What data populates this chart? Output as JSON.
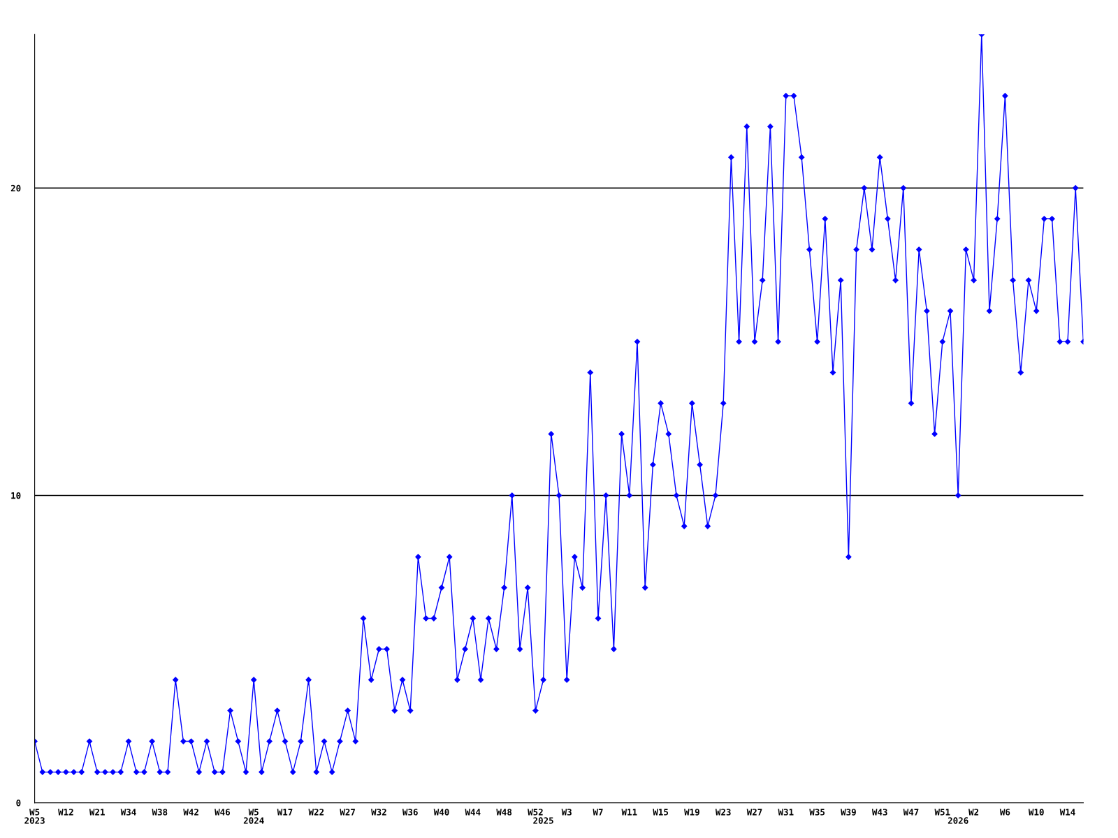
{
  "chart_data": {
    "type": "line",
    "categories": [
      "W5\n2023",
      null,
      null,
      null,
      "W12",
      null,
      null,
      null,
      "W21",
      null,
      null,
      null,
      "W34",
      null,
      null,
      null,
      "W38",
      null,
      null,
      null,
      "W42",
      null,
      null,
      null,
      "W46",
      null,
      null,
      null,
      "W5\n2024",
      null,
      null,
      null,
      "W17",
      null,
      null,
      null,
      "W22",
      null,
      null,
      null,
      "W27",
      null,
      null,
      null,
      "W32",
      null,
      null,
      null,
      "W36",
      null,
      null,
      null,
      "W40",
      null,
      null,
      null,
      "W44",
      null,
      null,
      null,
      "W48",
      null,
      null,
      null,
      "W52",
      "\n2025",
      null,
      null,
      "W3",
      null,
      null,
      null,
      "W7",
      null,
      null,
      null,
      "W11",
      null,
      null,
      null,
      "W15",
      null,
      null,
      null,
      "W19",
      null,
      null,
      null,
      "W23",
      null,
      null,
      null,
      "W27",
      null,
      null,
      null,
      "W31",
      null,
      null,
      null,
      "W35",
      null,
      null,
      null,
      "W39",
      null,
      null,
      null,
      "W43",
      null,
      null,
      null,
      "W47",
      null,
      null,
      null,
      "W51",
      null,
      "\n2026",
      null,
      "W2",
      null,
      null,
      null,
      "W6",
      null,
      null,
      null,
      "W10",
      null,
      null,
      null,
      "W14",
      null,
      null
    ],
    "series": [
      {
        "color": "#0000ff",
        "values": [
          2,
          1,
          1,
          1,
          1,
          1,
          1,
          2,
          1,
          1,
          1,
          1,
          2,
          1,
          1,
          2,
          1,
          1,
          4,
          2,
          2,
          1,
          2,
          1,
          1,
          3,
          2,
          1,
          4,
          1,
          2,
          3,
          2,
          1,
          2,
          4,
          1,
          2,
          1,
          2,
          3,
          2,
          6,
          4,
          5,
          5,
          3,
          4,
          3,
          8,
          6,
          6,
          7,
          8,
          4,
          5,
          6,
          4,
          6,
          5,
          7,
          10,
          5,
          7,
          3,
          4,
          12,
          10,
          4,
          8,
          7,
          14,
          6,
          10,
          5,
          12,
          10,
          15,
          7,
          11,
          13,
          12,
          10,
          9,
          13,
          11,
          9,
          10,
          13,
          21,
          15,
          22,
          15,
          17,
          22,
          15,
          23,
          23,
          21,
          18,
          15,
          19,
          14,
          17,
          8,
          18,
          20,
          18,
          21,
          19,
          17,
          20,
          13,
          18,
          16,
          12,
          15,
          16,
          10,
          18,
          17,
          25,
          16,
          19,
          23,
          17,
          14,
          17,
          16,
          19,
          19,
          15,
          15,
          20,
          15
        ]
      }
    ],
    "ylim": [
      0,
      25
    ],
    "yticks": [
      0,
      10,
      20
    ],
    "grid": "y",
    "marker": "diamond",
    "line_style": "solid"
  }
}
